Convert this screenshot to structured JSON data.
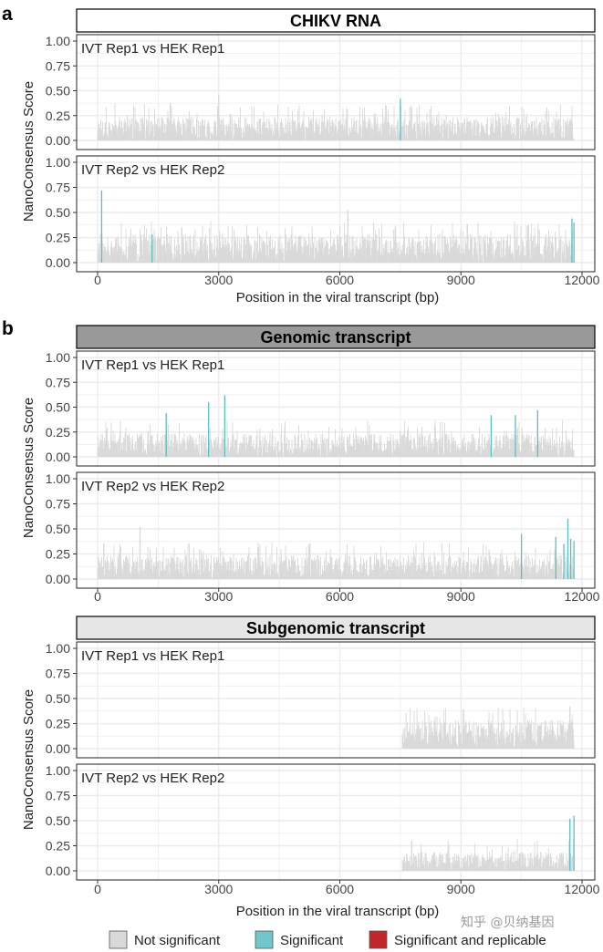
{
  "chart_data": [
    {
      "type": "bar",
      "panel_label": "a",
      "header": "CHIKV RNA",
      "xlabel": "Position in the viral transcript (bp)",
      "ylabel": "NanoConsensus Score",
      "xlim": [
        0,
        11800
      ],
      "ylim": [
        0,
        1
      ],
      "x_ticks": [
        "0",
        "3000",
        "6000",
        "9000",
        "12000"
      ],
      "y_ticks": [
        "0.00",
        "0.25",
        "0.50",
        "0.75",
        "1.00"
      ],
      "grid": true,
      "subplots": [
        {
          "title": "IVT Rep1 vs HEK Rep1",
          "background": {
            "start": 0,
            "end": 11800,
            "typical_max": 0.25
          },
          "peaks": [
            {
              "x": 1800,
              "y": 0.38,
              "class": "not_significant"
            },
            {
              "x": 3000,
              "y": 0.45,
              "class": "not_significant"
            },
            {
              "x": 7500,
              "y": 0.42,
              "class": "significant"
            }
          ]
        },
        {
          "title": "IVT Rep2 vs HEK Rep2",
          "background": {
            "start": 0,
            "end": 11800,
            "typical_max": 0.3
          },
          "peaks": [
            {
              "x": 100,
              "y": 0.72,
              "class": "significant"
            },
            {
              "x": 1350,
              "y": 0.28,
              "class": "significant"
            },
            {
              "x": 6200,
              "y": 0.52,
              "class": "not_significant"
            },
            {
              "x": 11750,
              "y": 0.44,
              "class": "significant"
            },
            {
              "x": 11800,
              "y": 0.4,
              "class": "significant"
            }
          ]
        }
      ]
    },
    {
      "type": "bar",
      "panel_label": "b",
      "header": "Genomic transcript",
      "xlabel": "",
      "ylabel": "NanoConsensus Score",
      "xlim": [
        0,
        11800
      ],
      "ylim": [
        0,
        1
      ],
      "x_ticks": [
        "0",
        "3000",
        "6000",
        "9000",
        "12000"
      ],
      "y_ticks": [
        "0.00",
        "0.25",
        "0.50",
        "0.75",
        "1.00"
      ],
      "grid": true,
      "subplots": [
        {
          "title": "IVT Rep1 vs HEK Rep1",
          "background": {
            "start": 0,
            "end": 11800,
            "typical_max": 0.25
          },
          "peaks": [
            {
              "x": 1700,
              "y": 0.44,
              "class": "significant"
            },
            {
              "x": 2750,
              "y": 0.55,
              "class": "significant"
            },
            {
              "x": 3150,
              "y": 0.62,
              "class": "significant"
            },
            {
              "x": 9750,
              "y": 0.42,
              "class": "significant"
            },
            {
              "x": 10350,
              "y": 0.42,
              "class": "significant"
            },
            {
              "x": 10900,
              "y": 0.47,
              "class": "significant"
            }
          ]
        },
        {
          "title": "IVT Rep2 vs HEK Rep2",
          "background": {
            "start": 0,
            "end": 11800,
            "typical_max": 0.25
          },
          "peaks": [
            {
              "x": 1050,
              "y": 0.52,
              "class": "not_significant"
            },
            {
              "x": 10500,
              "y": 0.45,
              "class": "significant"
            },
            {
              "x": 11350,
              "y": 0.42,
              "class": "significant"
            },
            {
              "x": 11550,
              "y": 0.35,
              "class": "significant"
            },
            {
              "x": 11650,
              "y": 0.6,
              "class": "significant"
            },
            {
              "x": 11720,
              "y": 0.4,
              "class": "significant"
            },
            {
              "x": 11800,
              "y": 0.38,
              "class": "significant"
            }
          ]
        }
      ]
    },
    {
      "type": "bar",
      "panel_label": "",
      "header": "Subgenomic transcript",
      "xlabel": "Position in the viral transcript (bp)",
      "ylabel": "NanoConsensus Score",
      "xlim": [
        0,
        11800
      ],
      "ylim": [
        0,
        1
      ],
      "x_ticks": [
        "0",
        "3000",
        "6000",
        "9000",
        "12000"
      ],
      "y_ticks": [
        "0.00",
        "0.25",
        "0.50",
        "0.75",
        "1.00"
      ],
      "grid": true,
      "subplots": [
        {
          "title": "IVT Rep1 vs HEK Rep1",
          "background": {
            "start": 7550,
            "end": 11800,
            "typical_max": 0.3
          },
          "peaks": [
            {
              "x": 11700,
              "y": 0.42,
              "class": "not_significant"
            }
          ]
        },
        {
          "title": "IVT Rep2 vs HEK Rep2",
          "background": {
            "start": 7550,
            "end": 11800,
            "typical_max": 0.2
          },
          "peaks": [
            {
              "x": 11700,
              "y": 0.52,
              "class": "significant"
            },
            {
              "x": 11800,
              "y": 0.55,
              "class": "significant"
            }
          ]
        }
      ]
    }
  ],
  "legend": {
    "items": [
      {
        "label": "Not significant",
        "color": "#d9d9d9"
      },
      {
        "label": "Significant",
        "color": "#6fc7c9"
      },
      {
        "label": "Significant and replicable",
        "color": "#c3262b"
      }
    ]
  },
  "colors": {
    "bar_gray": "#d9d9d9",
    "significant": "#58c0c4",
    "header_dark": "#999999",
    "header_light": "#e6e6e6",
    "grid": "#ececec"
  },
  "watermark": "知乎 @贝纳基因"
}
